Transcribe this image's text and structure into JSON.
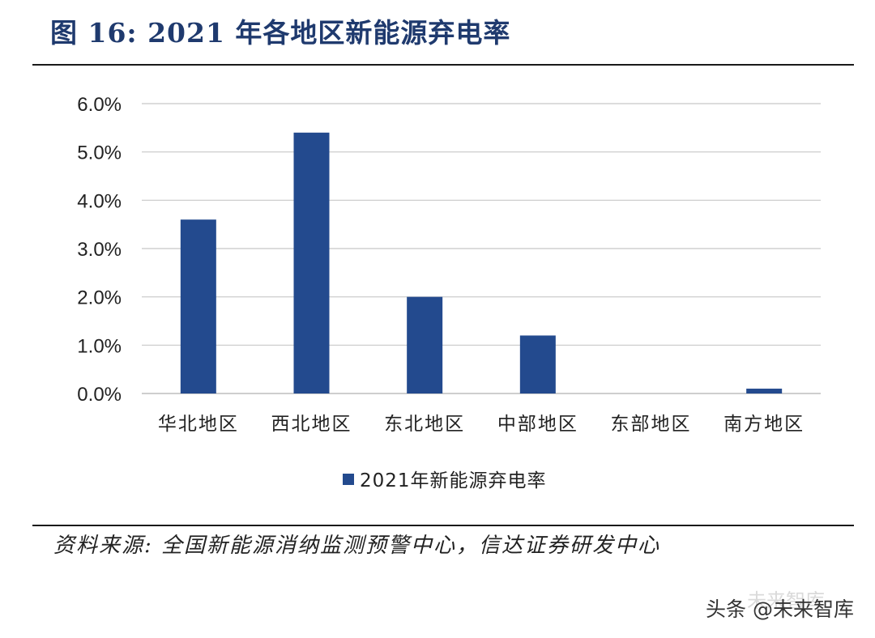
{
  "title": "图 16:  2021 年各地区新能源弃电率",
  "source": "资料来源: 全国新能源消纳监测预警中心，信达证券研发中心",
  "watermark": "头条 @未来智库",
  "watermark_ghost": "未来智库",
  "colors": {
    "bar": "#234a8e",
    "title": "#1f3a6e",
    "grid": "#c8c8c8"
  },
  "chart_data": {
    "type": "bar",
    "categories": [
      "华北地区",
      "西北地区",
      "东北地区",
      "中部地区",
      "东部地区",
      "南方地区"
    ],
    "series": [
      {
        "name": "2021年新能源弃电率",
        "values": [
          3.6,
          5.4,
          2.0,
          1.2,
          0.0,
          0.1
        ]
      }
    ],
    "yticks": [
      "0.0%",
      "1.0%",
      "2.0%",
      "3.0%",
      "4.0%",
      "5.0%",
      "6.0%"
    ],
    "ylim": [
      0,
      6
    ],
    "grid": true,
    "legend_position": "bottom"
  }
}
